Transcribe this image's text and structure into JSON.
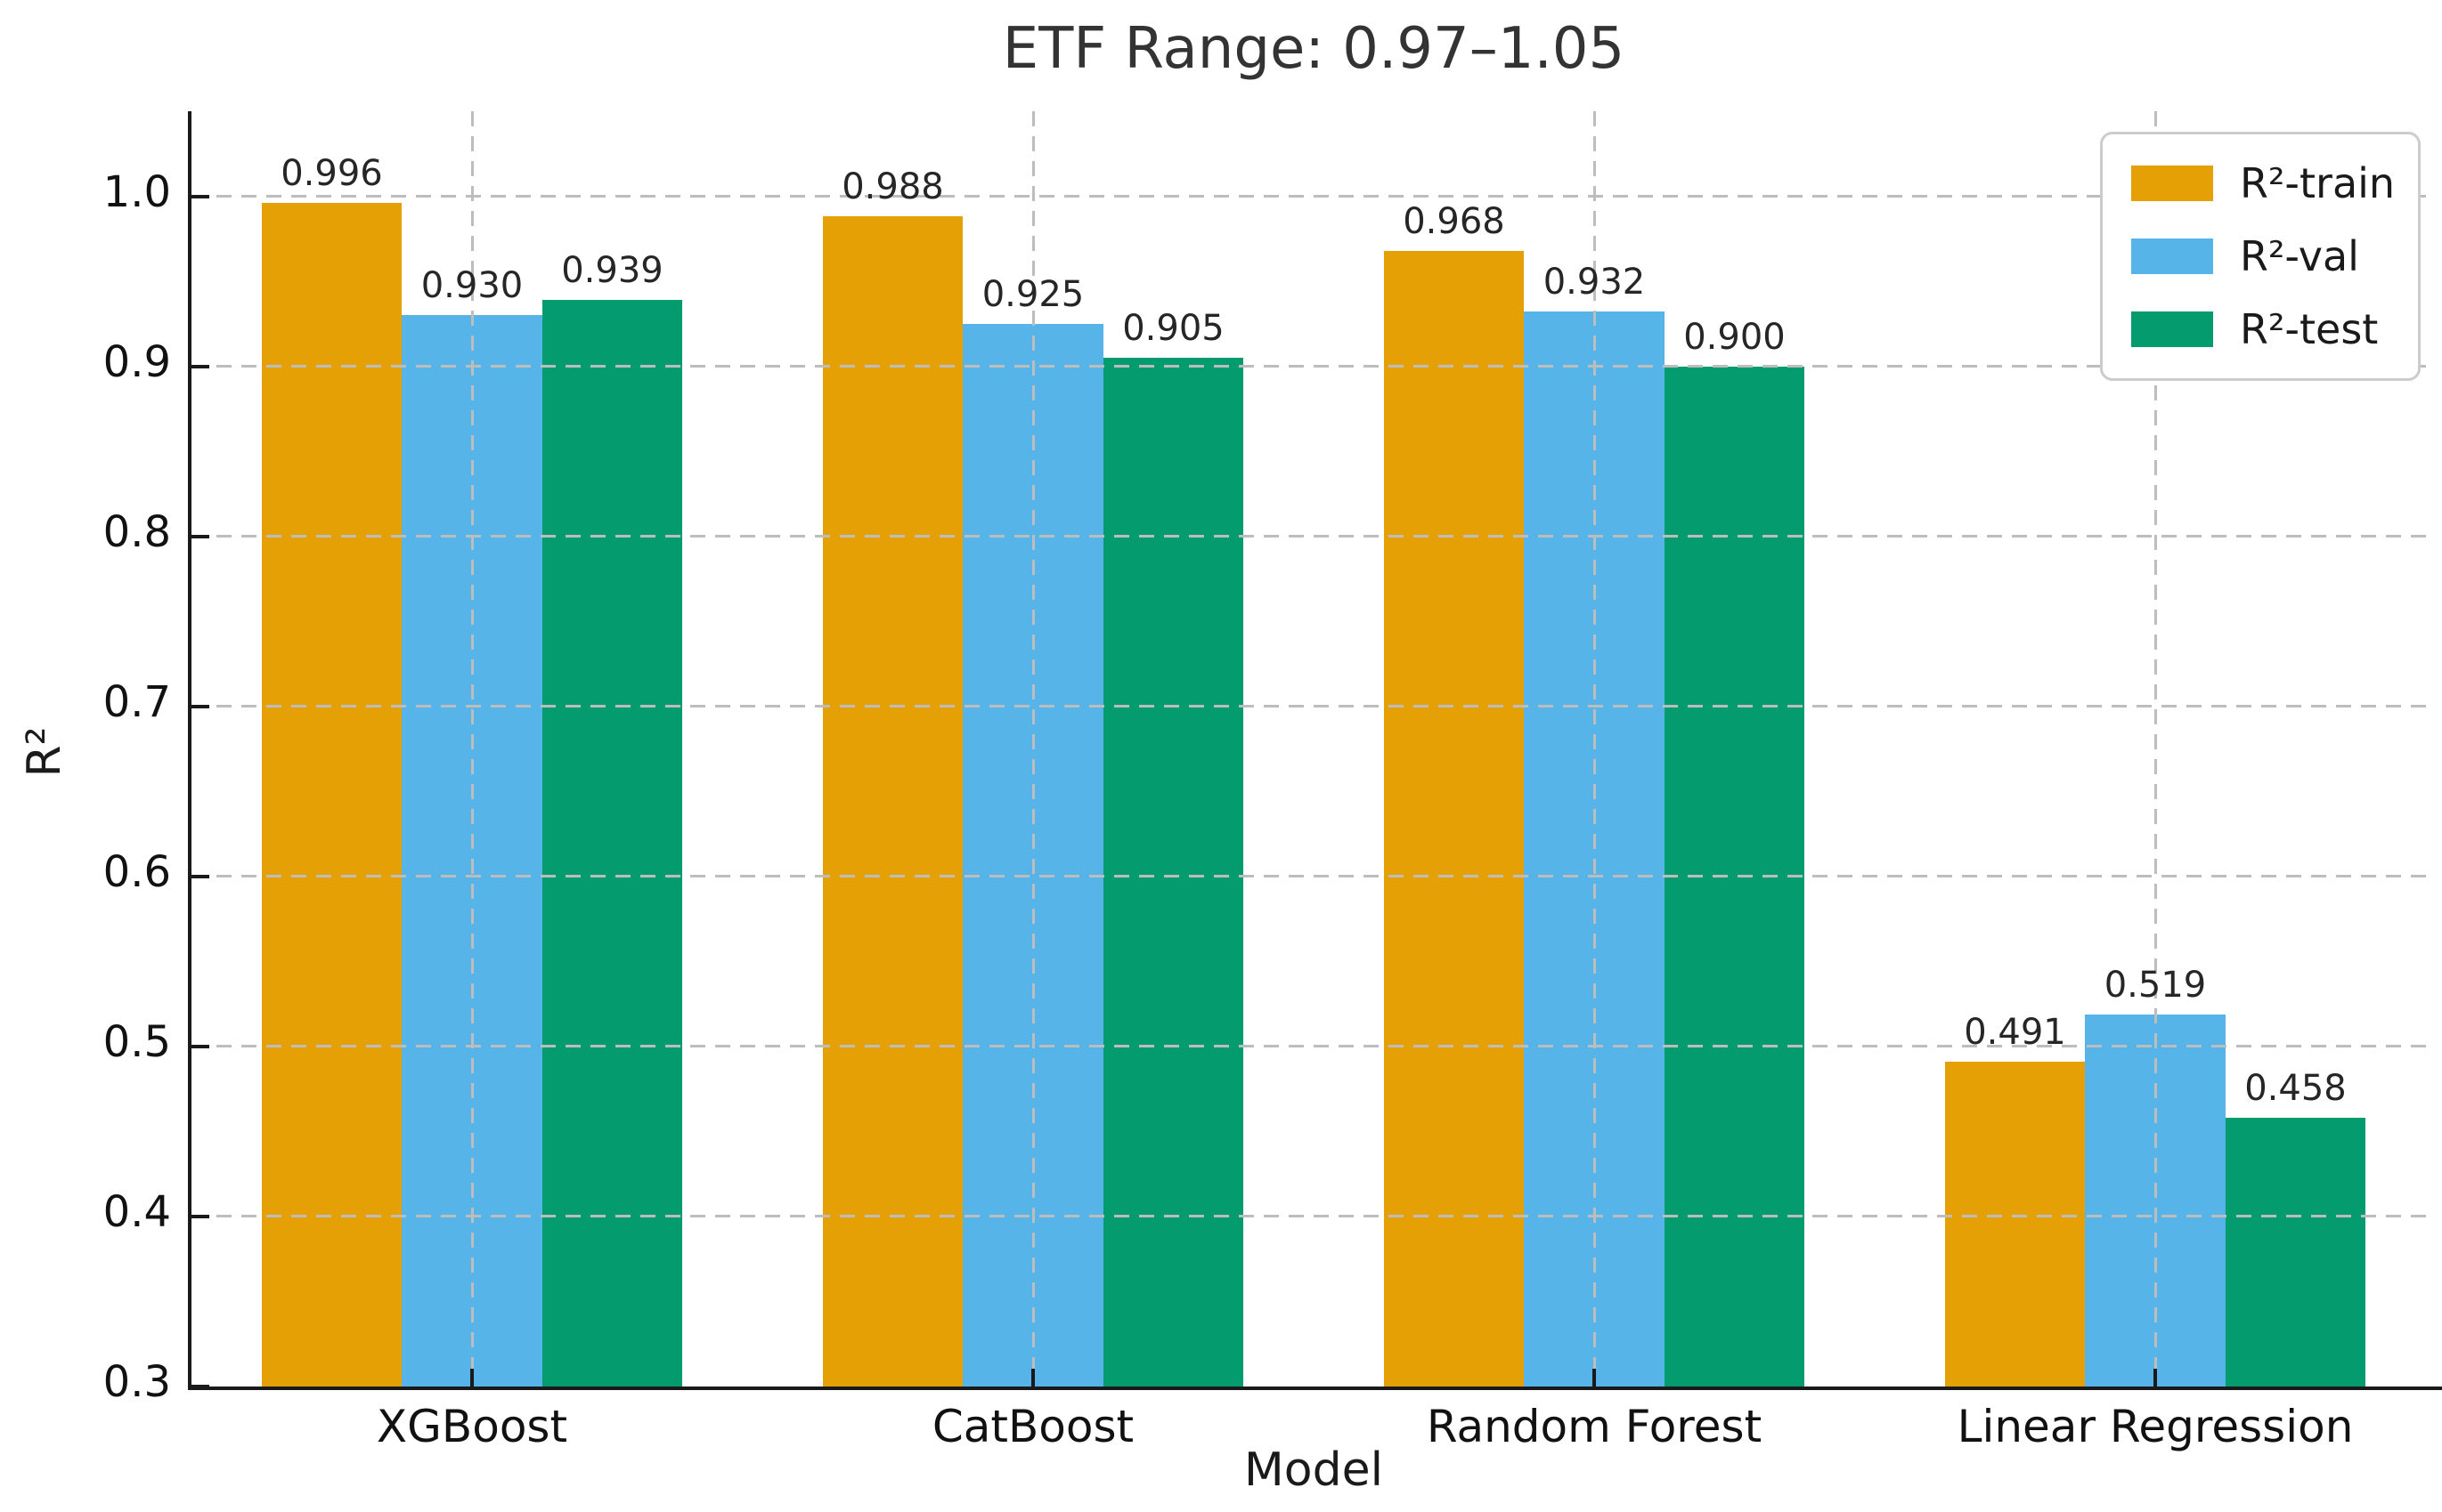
{
  "chart_data": {
    "type": "bar",
    "title": "ETF Range: 0.97–1.05",
    "xlabel": "Model",
    "ylabel": "R²",
    "categories": [
      "XGBoost",
      "CatBoost",
      "Random Forest",
      "Linear Regression"
    ],
    "series": [
      {
        "name": "R²-train",
        "color": "#e5a006",
        "values": [
          0.996,
          0.988,
          0.968,
          0.491
        ],
        "labels": [
          "0.996",
          "0.988",
          "0.968",
          "0.491"
        ]
      },
      {
        "name": "R²-val",
        "color": "#57b4e9",
        "values": [
          0.93,
          0.925,
          0.932,
          0.519
        ],
        "labels": [
          "0.930",
          "0.925",
          "0.932",
          "0.519"
        ]
      },
      {
        "name": "R²-test",
        "color": "#049c6f",
        "values": [
          0.939,
          0.905,
          0.9,
          0.458
        ],
        "labels": [
          "0.939",
          "0.905",
          "0.900",
          "0.458"
        ]
      }
    ],
    "ylim": [
      0.3,
      1.05
    ],
    "yticks": [
      0.3,
      0.4,
      0.5,
      0.6,
      0.7,
      0.8,
      0.9,
      1.0
    ],
    "ytick_labels": [
      "0.3",
      "0.4",
      "0.5",
      "0.6",
      "0.7",
      "0.8",
      "0.9",
      "1.0"
    ],
    "grid": true,
    "grid_style": "dashed",
    "grid_above_bars": true,
    "legend_position": "upper right",
    "value_label_decimals": 3,
    "colors": {
      "train": "#e5a006",
      "val": "#57b4e9",
      "test": "#049c6f",
      "grid": "#bdbdbd",
      "axis": "#1a1a1a",
      "title_text": "#333333",
      "background": "#ffffff"
    }
  }
}
